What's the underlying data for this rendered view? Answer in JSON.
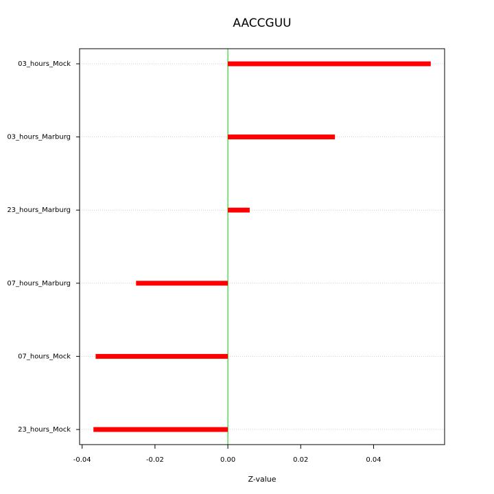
{
  "chart_data": {
    "type": "hbar",
    "title": "AACCGUU",
    "x_label": "Z-value",
    "categories": [
      "03_hours_Mock",
      "03_hours_Marburg",
      "23_hours_Marburg",
      "07_hours_Marburg",
      "07_hours_Mock",
      "23_hours_Mock"
    ],
    "values": [
      0.0557,
      0.0294,
      0.006,
      -0.0252,
      -0.0363,
      -0.0369
    ],
    "color": "#ff0000",
    "zero_line_color": "#00cc00",
    "xlim": [
      -0.0407,
      0.0595
    ],
    "xticks": [
      -0.04,
      -0.02,
      {
        "value": 0,
        "label": "0.00"
      },
      0.02,
      0.04
    ],
    "grid": true
  }
}
